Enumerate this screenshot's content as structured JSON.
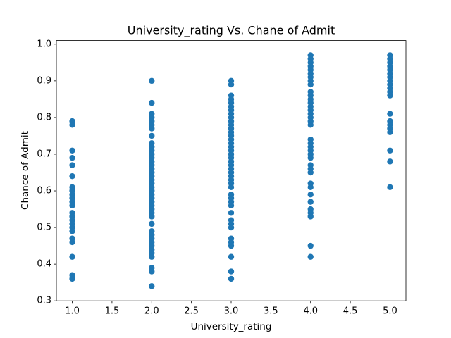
{
  "chart_data": {
    "type": "scatter",
    "title": "University_rating Vs. Chane of Admit",
    "xlabel": "University_rating",
    "ylabel": "Chance of Admit",
    "series": [
      {
        "color": "#1f77b4",
        "x": [
          1,
          1,
          1,
          1,
          1,
          1,
          1,
          1,
          1,
          1,
          1,
          1,
          1,
          1,
          1,
          1,
          1,
          1,
          1,
          1,
          1,
          1,
          1
        ],
        "values": [
          0.79,
          0.78,
          0.71,
          0.69,
          0.67,
          0.64,
          0.61,
          0.6,
          0.59,
          0.58,
          0.57,
          0.56,
          0.54,
          0.53,
          0.52,
          0.51,
          0.5,
          0.49,
          0.47,
          0.46,
          0.42,
          0.37,
          0.36
        ]
      },
      {
        "color": "#1f77b4",
        "x": [
          2,
          2,
          2,
          2,
          2,
          2,
          2,
          2,
          2,
          2,
          2,
          2,
          2,
          2,
          2,
          2,
          2,
          2,
          2,
          2,
          2,
          2,
          2,
          2,
          2,
          2,
          2,
          2,
          2,
          2,
          2,
          2,
          2,
          2,
          2,
          2,
          2,
          2,
          2,
          2,
          2
        ],
        "values": [
          0.9,
          0.84,
          0.81,
          0.8,
          0.79,
          0.78,
          0.77,
          0.75,
          0.73,
          0.72,
          0.71,
          0.7,
          0.69,
          0.68,
          0.67,
          0.66,
          0.65,
          0.64,
          0.63,
          0.62,
          0.61,
          0.6,
          0.59,
          0.58,
          0.57,
          0.56,
          0.55,
          0.54,
          0.53,
          0.51,
          0.49,
          0.48,
          0.47,
          0.46,
          0.45,
          0.44,
          0.43,
          0.42,
          0.39,
          0.38,
          0.34
        ]
      },
      {
        "color": "#1f77b4",
        "x": [
          3,
          3,
          3,
          3,
          3,
          3,
          3,
          3,
          3,
          3,
          3,
          3,
          3,
          3,
          3,
          3,
          3,
          3,
          3,
          3,
          3,
          3,
          3,
          3,
          3,
          3,
          3,
          3,
          3,
          3,
          3,
          3,
          3,
          3,
          3,
          3,
          3,
          3,
          3,
          3,
          3,
          3
        ],
        "values": [
          0.9,
          0.89,
          0.86,
          0.85,
          0.84,
          0.83,
          0.82,
          0.81,
          0.8,
          0.79,
          0.78,
          0.77,
          0.76,
          0.75,
          0.74,
          0.73,
          0.72,
          0.71,
          0.7,
          0.69,
          0.68,
          0.67,
          0.66,
          0.65,
          0.64,
          0.63,
          0.62,
          0.61,
          0.59,
          0.58,
          0.57,
          0.56,
          0.54,
          0.52,
          0.51,
          0.5,
          0.47,
          0.46,
          0.45,
          0.42,
          0.38,
          0.36
        ]
      },
      {
        "color": "#1f77b4",
        "x": [
          4,
          4,
          4,
          4,
          4,
          4,
          4,
          4,
          4,
          4,
          4,
          4,
          4,
          4,
          4,
          4,
          4,
          4,
          4,
          4,
          4,
          4,
          4,
          4,
          4,
          4,
          4,
          4,
          4,
          4,
          4,
          4,
          4,
          4,
          4,
          4,
          4
        ],
        "values": [
          0.97,
          0.96,
          0.95,
          0.94,
          0.93,
          0.92,
          0.91,
          0.9,
          0.89,
          0.87,
          0.86,
          0.85,
          0.84,
          0.83,
          0.82,
          0.81,
          0.8,
          0.79,
          0.78,
          0.74,
          0.73,
          0.72,
          0.71,
          0.7,
          0.69,
          0.67,
          0.66,
          0.65,
          0.62,
          0.61,
          0.59,
          0.57,
          0.55,
          0.54,
          0.53,
          0.45,
          0.42
        ]
      },
      {
        "color": "#1f77b4",
        "x": [
          5,
          5,
          5,
          5,
          5,
          5,
          5,
          5,
          5,
          5,
          5,
          5,
          5,
          5,
          5,
          5,
          5,
          5,
          5,
          5
        ],
        "values": [
          0.97,
          0.96,
          0.95,
          0.94,
          0.93,
          0.92,
          0.91,
          0.9,
          0.89,
          0.88,
          0.87,
          0.86,
          0.81,
          0.79,
          0.78,
          0.77,
          0.76,
          0.71,
          0.68,
          0.61
        ]
      }
    ],
    "xlim": [
      0.8,
      5.2
    ],
    "xticks": [
      {
        "value": 1,
        "label": "1.0"
      },
      1.5,
      {
        "value": 2,
        "label": "2.0"
      },
      2.5,
      {
        "value": 3,
        "label": "3.0"
      },
      3.5,
      {
        "value": 4,
        "label": "4.0"
      },
      4.5,
      {
        "value": 5,
        "label": "5.0"
      }
    ],
    "ylim": [
      0.3,
      1.01
    ],
    "yticks": [
      0.3,
      0.4,
      0.5,
      0.6,
      0.7,
      0.8,
      0.9,
      {
        "value": 1,
        "label": "1.0"
      }
    ],
    "grid": false
  }
}
